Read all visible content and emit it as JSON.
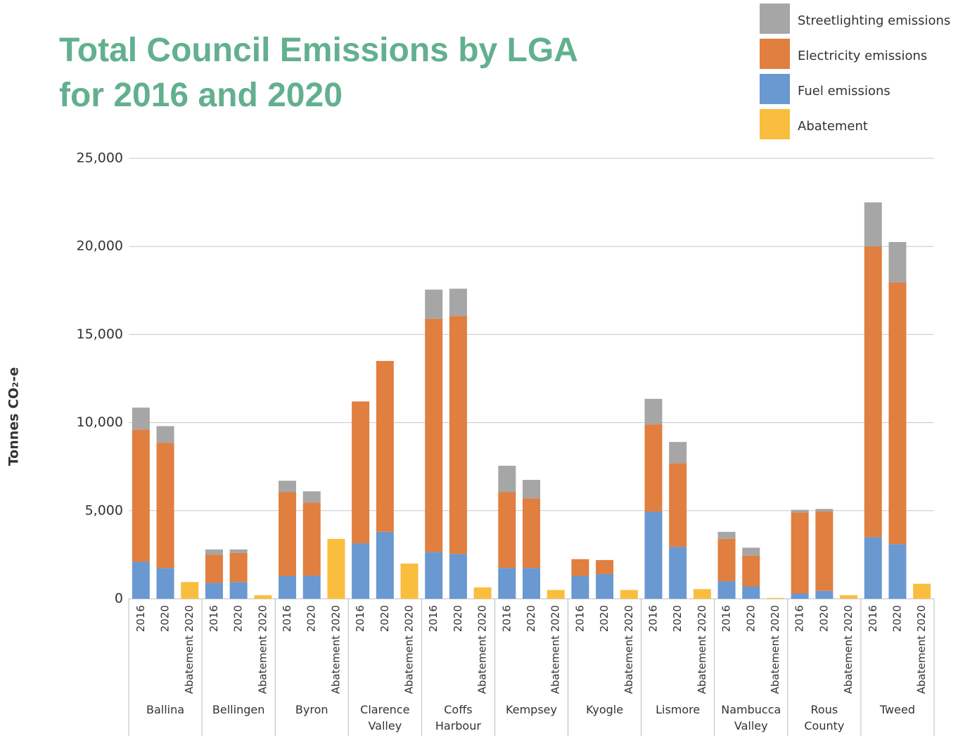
{
  "chart_data": {
    "type": "bar",
    "title": "Total Council Emissions by LGA for 2016 and 2020",
    "y_label": "Tonnes CO₂-e",
    "groups": [
      "Ballina",
      "Bellingen",
      "Byron",
      "Clarence Valley",
      "Coffs Harbour",
      "Kempsey",
      "Kyogle",
      "Lismore",
      "Nambucca Valley",
      "Rous County",
      "Tweed"
    ],
    "categories": [
      "2016",
      "2020",
      "Abatement 2020",
      "2016",
      "2020",
      "Abatement 2020",
      "2016",
      "2020",
      "Abatement 2020",
      "2016",
      "2020",
      "Abatement 2020",
      "2016",
      "2020",
      "Abatement 2020",
      "2016",
      "2020",
      "Abatement 2020",
      "2016",
      "2020",
      "Abatement 2020",
      "2016",
      "2020",
      "Abatement 2020",
      "2016",
      "2020",
      "Abatement 2020",
      "2016",
      "2020",
      "Abatement 2020",
      "2016",
      "2020",
      "Abatement 2020"
    ],
    "series": [
      {
        "name": "Streetlighting emissions",
        "color": "#a6a6a6",
        "values": [
          1250,
          950,
          null,
          300,
          200,
          null,
          650,
          650,
          null,
          null,
          null,
          null,
          1650,
          1550,
          null,
          1500,
          1050,
          null,
          null,
          null,
          null,
          1450,
          1200,
          null,
          400,
          450,
          null,
          150,
          150,
          null,
          2500,
          2300,
          null
        ]
      },
      {
        "name": "Electricity emissions",
        "color": "#e07f3f",
        "values": [
          7500,
          7100,
          null,
          1600,
          1650,
          null,
          4750,
          4150,
          null,
          8050,
          9700,
          null,
          13250,
          13500,
          null,
          4300,
          3950,
          null,
          950,
          800,
          null,
          4950,
          4750,
          null,
          2400,
          1750,
          null,
          4600,
          4500,
          null,
          16500,
          14850,
          null
        ]
      },
      {
        "name": "Fuel emissions",
        "color": "#6a98d0",
        "values": [
          2100,
          1750,
          null,
          900,
          950,
          null,
          1300,
          1300,
          null,
          3150,
          3800,
          null,
          2650,
          2550,
          null,
          1750,
          1750,
          null,
          1300,
          1400,
          null,
          4950,
          2950,
          null,
          1000,
          700,
          null,
          300,
          450,
          null,
          3500,
          3100,
          null
        ]
      },
      {
        "name": "Abatement",
        "color": "#f9be3e",
        "values": [
          null,
          null,
          950,
          null,
          null,
          200,
          null,
          null,
          3400,
          null,
          null,
          2000,
          null,
          null,
          650,
          null,
          null,
          500,
          null,
          null,
          500,
          null,
          null,
          550,
          null,
          null,
          50,
          null,
          null,
          200,
          null,
          null,
          850
        ]
      }
    ],
    "ylim": [
      0,
      25000
    ],
    "yticks": [
      0,
      {
        "value": 5000,
        "label": "5,000"
      },
      {
        "value": 10000,
        "label": "10,000"
      },
      {
        "value": 15000,
        "label": "15,000"
      },
      {
        "value": 20000,
        "label": "20,000"
      },
      {
        "value": 25000,
        "label": "25,000"
      }
    ],
    "grid": true,
    "legend": "top-right"
  }
}
